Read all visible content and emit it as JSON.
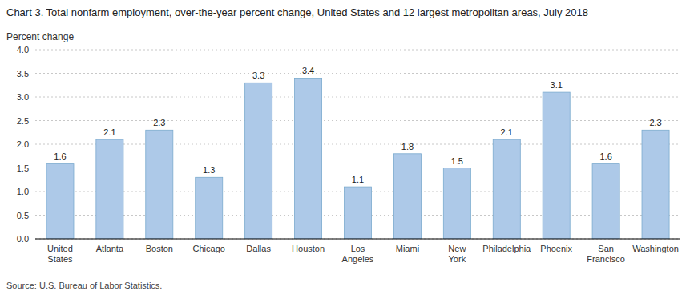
{
  "chart_data": {
    "type": "bar",
    "title": "Chart 3. Total nonfarm employment, over-the-year percent change, United States and 12 largest metropolitan areas, July 2018",
    "ylabel": "Percent change",
    "source": "Source: U.S. Bureau of Labor Statistics.",
    "categories": [
      "United\nStates",
      "Atlanta",
      "Boston",
      "Chicago",
      "Dallas",
      "Houston",
      "Los\nAngeles",
      "Miami",
      "New\nYork",
      "Philadelphia",
      "Phoenix",
      "San\nFrancisco",
      "Washington"
    ],
    "values": [
      1.6,
      2.1,
      2.3,
      1.3,
      3.3,
      3.4,
      1.1,
      1.8,
      1.5,
      2.1,
      3.1,
      1.6,
      2.3
    ],
    "color": "#adc9e8",
    "ylim": [
      0.0,
      4.0
    ],
    "yticks": [
      {
        "value": 0.0,
        "label": "0.0"
      },
      0.5,
      {
        "value": 1.0,
        "label": "1.0"
      },
      1.5,
      {
        "value": 2.0,
        "label": "2.0"
      },
      2.5,
      {
        "value": 3.0,
        "label": "3.0"
      },
      3.5,
      {
        "value": 4.0,
        "label": "4.0"
      }
    ],
    "grid": true,
    "data_labels": true
  }
}
